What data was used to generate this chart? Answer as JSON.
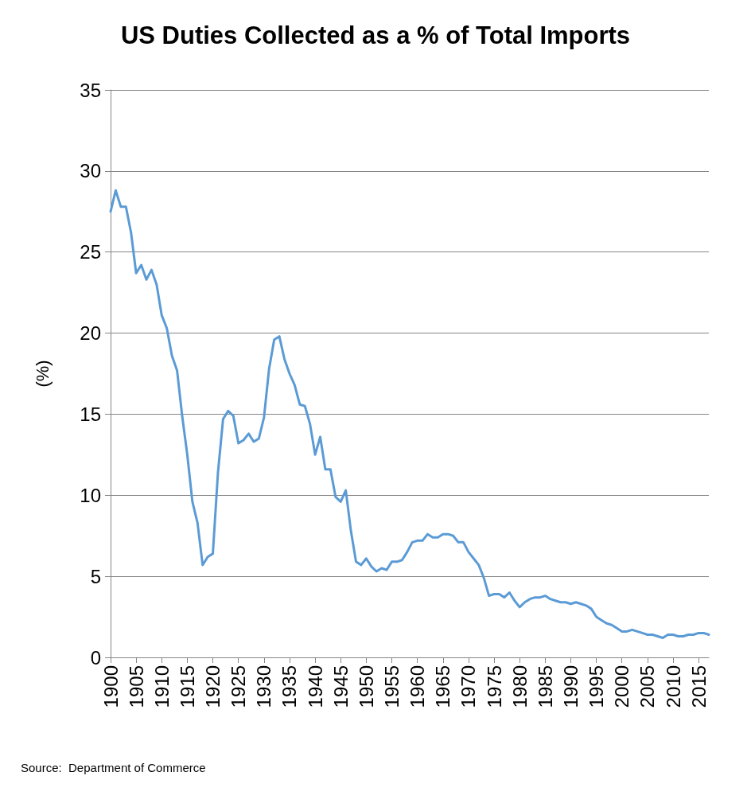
{
  "chart_data": {
    "type": "line",
    "title": "US Duties Collected as a % of Total Imports",
    "ylabel": "(%)",
    "annotations": [
      "Source:  Department of Commerce"
    ],
    "x": [
      1900,
      1901,
      1902,
      1903,
      1904,
      1905,
      1906,
      1907,
      1908,
      1909,
      1910,
      1911,
      1912,
      1913,
      1914,
      1915,
      1916,
      1917,
      1918,
      1919,
      1920,
      1921,
      1922,
      1923,
      1924,
      1925,
      1926,
      1927,
      1928,
      1929,
      1930,
      1931,
      1932,
      1933,
      1934,
      1935,
      1936,
      1937,
      1938,
      1939,
      1940,
      1941,
      1942,
      1943,
      1944,
      1945,
      1946,
      1947,
      1948,
      1949,
      1950,
      1951,
      1952,
      1953,
      1954,
      1955,
      1956,
      1957,
      1958,
      1959,
      1960,
      1961,
      1962,
      1963,
      1964,
      1965,
      1966,
      1967,
      1968,
      1969,
      1970,
      1971,
      1972,
      1973,
      1974,
      1975,
      1976,
      1977,
      1978,
      1979,
      1980,
      1981,
      1982,
      1983,
      1984,
      1985,
      1986,
      1987,
      1988,
      1989,
      1990,
      1991,
      1992,
      1993,
      1994,
      1995,
      1996,
      1997,
      1998,
      1999,
      2000,
      2001,
      2002,
      2003,
      2004,
      2005,
      2006,
      2007,
      2008,
      2009,
      2010,
      2011,
      2012,
      2013,
      2014,
      2015,
      2016,
      2017
    ],
    "series": [
      {
        "color": "#5b9bd5",
        "values": [
          27.5,
          28.8,
          27.8,
          27.8,
          26.2,
          23.7,
          24.2,
          23.3,
          23.9,
          23.0,
          21.1,
          20.3,
          18.6,
          17.7,
          14.9,
          12.5,
          9.6,
          8.3,
          5.7,
          6.2,
          6.4,
          11.4,
          14.7,
          15.2,
          14.9,
          13.2,
          13.4,
          13.8,
          13.3,
          13.5,
          14.8,
          17.8,
          19.6,
          19.8,
          18.4,
          17.5,
          16.8,
          15.6,
          15.5,
          14.4,
          12.5,
          13.6,
          11.6,
          11.6,
          9.9,
          9.6,
          10.3,
          7.8,
          5.9,
          5.7,
          6.1,
          5.6,
          5.3,
          5.5,
          5.4,
          5.9,
          5.9,
          6.0,
          6.5,
          7.1,
          7.2,
          7.2,
          7.6,
          7.4,
          7.4,
          7.6,
          7.6,
          7.5,
          7.1,
          7.1,
          6.5,
          6.1,
          5.7,
          4.9,
          3.8,
          3.9,
          3.9,
          3.7,
          4.0,
          3.5,
          3.1,
          3.4,
          3.6,
          3.7,
          3.7,
          3.8,
          3.6,
          3.5,
          3.4,
          3.4,
          3.3,
          3.4,
          3.3,
          3.2,
          3.0,
          2.5,
          2.3,
          2.1,
          2.0,
          1.8,
          1.6,
          1.6,
          1.7,
          1.6,
          1.5,
          1.4,
          1.4,
          1.3,
          1.2,
          1.4,
          1.4,
          1.3,
          1.3,
          1.4,
          1.4,
          1.5,
          1.5,
          1.4
        ]
      }
    ],
    "xlim": [
      1900,
      2017
    ],
    "xticks": [
      1900,
      1905,
      1910,
      1915,
      1920,
      1925,
      1930,
      1935,
      1940,
      1945,
      1950,
      1955,
      1960,
      1965,
      1970,
      1975,
      1980,
      1985,
      1990,
      1995,
      2000,
      2005,
      2010,
      2015
    ],
    "ylim": [
      0,
      35
    ],
    "yticks": [
      0,
      5,
      10,
      15,
      20,
      25,
      30,
      35
    ],
    "grid": "y",
    "marker": "none",
    "line_style": "solid"
  }
}
